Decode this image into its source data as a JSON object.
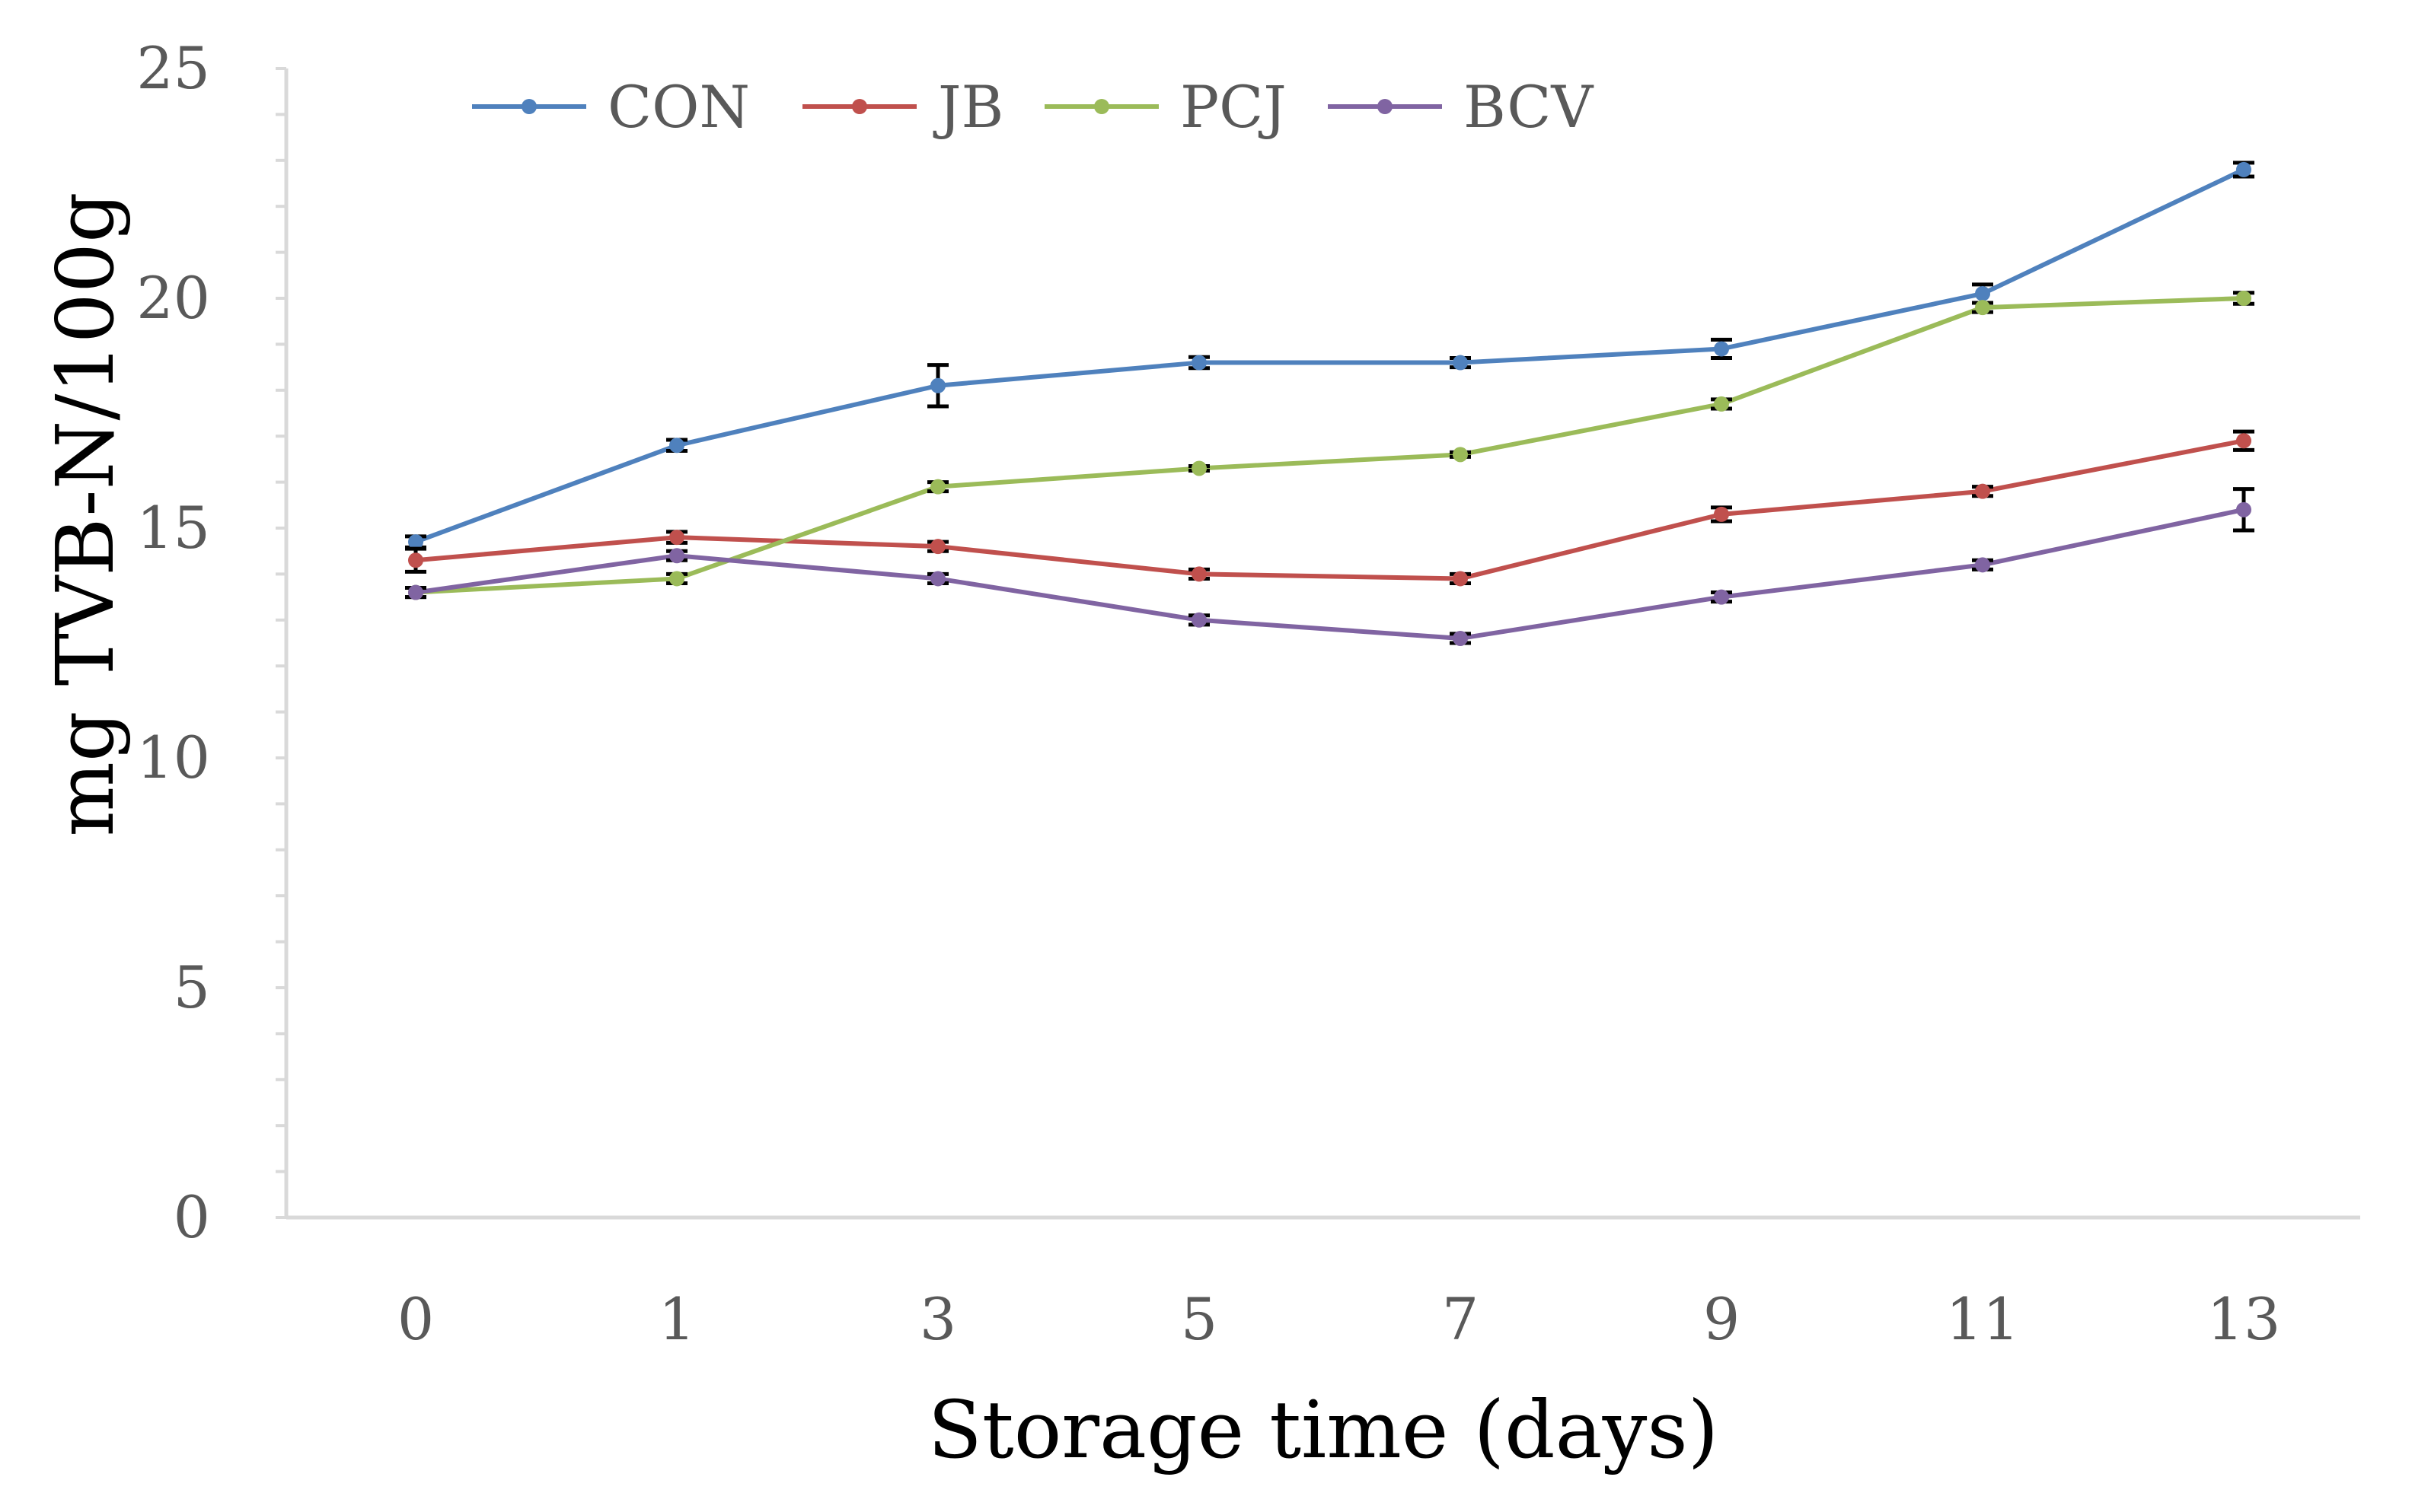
{
  "chart_data": {
    "type": "line",
    "title": "",
    "xlabel": "Storage time (days)",
    "ylabel": "mg TVB-N/100g",
    "categories": [
      "0",
      "1",
      "3",
      "5",
      "7",
      "9",
      "11",
      "13"
    ],
    "ylim": [
      0,
      25
    ],
    "yticks": [
      "0",
      "5",
      "10",
      "15",
      "20",
      "25"
    ],
    "y_minor_step": 1,
    "grid": false,
    "legend_position": "top",
    "series": [
      {
        "name": "CON",
        "color": "#4F81BD",
        "values": [
          14.7,
          16.8,
          18.1,
          18.6,
          18.6,
          18.9,
          20.1,
          22.8
        ],
        "errors": [
          0.12,
          0.12,
          0.45,
          0.12,
          0.1,
          0.2,
          0.2,
          0.15
        ]
      },
      {
        "name": "JB",
        "color": "#C0504D",
        "values": [
          14.3,
          14.8,
          14.6,
          14.0,
          13.9,
          15.3,
          15.8,
          16.9
        ],
        "errors": [
          0.25,
          0.12,
          0.1,
          0.1,
          0.1,
          0.15,
          0.1,
          0.2
        ]
      },
      {
        "name": "PCJ",
        "color": "#9BBB59",
        "values": [
          13.6,
          13.9,
          15.9,
          16.3,
          16.6,
          17.7,
          19.8,
          20.0
        ],
        "errors": [
          0.1,
          0.1,
          0.1,
          0.05,
          0.05,
          0.1,
          0.1,
          0.12
        ]
      },
      {
        "name": "BCV",
        "color": "#8064A2",
        "values": [
          13.6,
          14.4,
          13.9,
          13.0,
          12.6,
          13.5,
          14.2,
          15.4
        ],
        "errors": [
          0.1,
          0.1,
          0.1,
          0.1,
          0.1,
          0.1,
          0.1,
          0.45
        ]
      }
    ]
  }
}
